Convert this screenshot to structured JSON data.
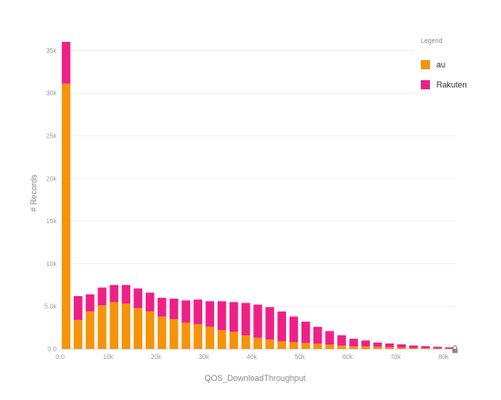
{
  "chart_data": {
    "type": "bar",
    "stacked": true,
    "xlabel": "QOS_DownloadThroughput",
    "ylabel": "# Records",
    "xlim": [
      0,
      82500
    ],
    "ylim": [
      0,
      36000
    ],
    "bin_width": 2500,
    "x_ticks": [
      {
        "value": 0,
        "label": "0.0"
      },
      {
        "value": 10000,
        "label": "10k"
      },
      {
        "value": 20000,
        "label": "20k"
      },
      {
        "value": 30000,
        "label": "30k"
      },
      {
        "value": 40000,
        "label": "40k"
      },
      {
        "value": 50000,
        "label": "50k"
      },
      {
        "value": 60000,
        "label": "60k"
      },
      {
        "value": 70000,
        "label": "70k"
      },
      {
        "value": 80000,
        "label": "80k"
      }
    ],
    "y_ticks": [
      {
        "value": 0,
        "label": "0.0"
      },
      {
        "value": 5000,
        "label": "5.0k"
      },
      {
        "value": 10000,
        "label": "10k"
      },
      {
        "value": 15000,
        "label": "15k"
      },
      {
        "value": 20000,
        "label": "20k"
      },
      {
        "value": 25000,
        "label": "25k"
      },
      {
        "value": 30000,
        "label": "30k"
      },
      {
        "value": 35000,
        "label": "35k"
      }
    ],
    "x": [
      0,
      2500,
      5000,
      7500,
      10000,
      12500,
      15000,
      17500,
      20000,
      22500,
      25000,
      27500,
      30000,
      32500,
      35000,
      37500,
      40000,
      42500,
      45000,
      47500,
      50000,
      52500,
      55000,
      57500,
      60000,
      62500,
      65000,
      67500,
      70000,
      72500,
      75000,
      77500,
      80000
    ],
    "series": [
      {
        "name": "au",
        "color": "#f5930a",
        "values": [
          31100,
          3400,
          4400,
          5100,
          5500,
          5300,
          4800,
          4400,
          3800,
          3500,
          3100,
          2900,
          2600,
          2200,
          2000,
          1600,
          1300,
          1100,
          900,
          800,
          700,
          600,
          500,
          400,
          300,
          300,
          250,
          200,
          150,
          100,
          80,
          60,
          40
        ]
      },
      {
        "name": "Rakuten",
        "color": "#ee2088",
        "values": [
          4900,
          2800,
          2000,
          2100,
          2000,
          2200,
          2300,
          2200,
          2200,
          2400,
          2600,
          2900,
          3000,
          3400,
          3500,
          3800,
          3900,
          3800,
          3500,
          3000,
          2500,
          2000,
          1600,
          1200,
          900,
          700,
          500,
          450,
          400,
          300,
          250,
          200,
          150
        ]
      }
    ]
  },
  "legend": {
    "title": "Legend",
    "items": [
      {
        "label": "au",
        "color": "#f5930a"
      },
      {
        "label": "Rakuten",
        "color": "#ee2088"
      }
    ]
  }
}
